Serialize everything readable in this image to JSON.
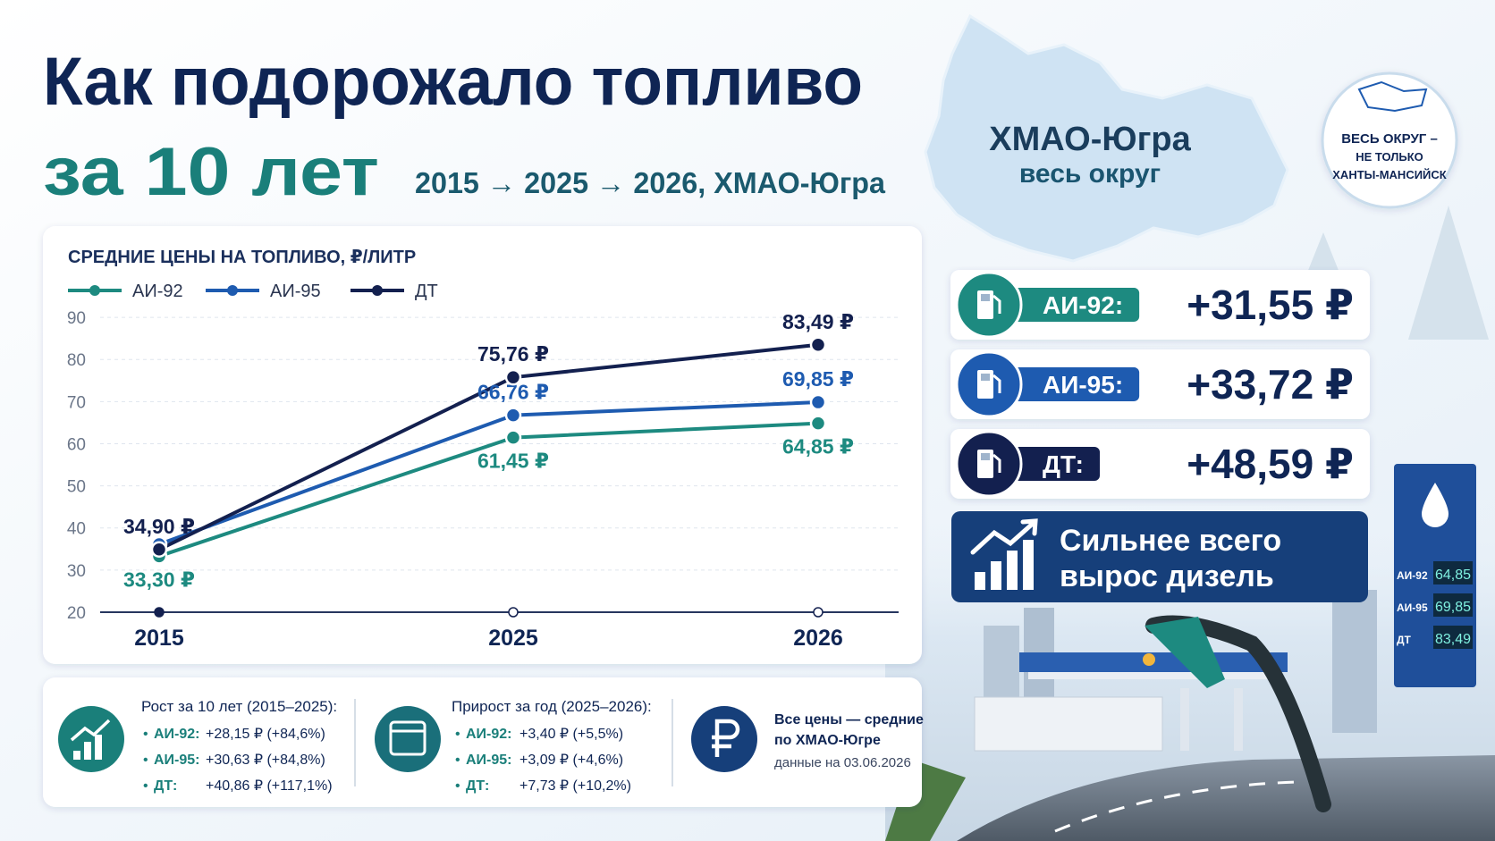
{
  "header": {
    "title_line1": "Как подорожало топливо",
    "title_line2": "за 10 лет",
    "subtitle": "2015 → 2025 → 2026, ХМАО-Югра"
  },
  "region": {
    "name": "ХМАО-Югра",
    "scope": "весь округ"
  },
  "badge": {
    "lines": [
      "ВЕСЬ ОКРУГ –",
      "НЕ ТОЛЬКО",
      "ХАНТЫ-МАНСИЙСК"
    ]
  },
  "chart_data": {
    "type": "line",
    "title": "СРЕДНИЕ ЦЕНЫ НА ТОПЛИВО, ₽/ЛИТР",
    "categories": [
      "2015",
      "2025",
      "2026"
    ],
    "series": [
      {
        "name": "АИ-92",
        "color": "#1d8a80",
        "values": [
          33.3,
          61.45,
          64.85
        ],
        "value_labels": [
          "33,30 ₽",
          "61,45 ₽",
          "64,85 ₽"
        ]
      },
      {
        "name": "АИ-95",
        "color": "#1e5bb0",
        "values": [
          36.13,
          66.76,
          69.85
        ],
        "value_labels": [
          null,
          "66,76 ₽",
          "69,85 ₽"
        ]
      },
      {
        "name": "ДТ",
        "color": "#13204f",
        "values": [
          34.9,
          75.76,
          83.49
        ],
        "value_labels": [
          "34,90 ₽",
          "75,76 ₽",
          "83,49 ₽"
        ]
      }
    ],
    "ylim": [
      20,
      95
    ],
    "yticks": [
      20,
      30,
      40,
      50,
      60,
      70,
      80,
      90
    ],
    "grid": true
  },
  "increases": [
    {
      "label": "АИ-92:",
      "value": "+31,55 ₽",
      "color": "#1d8a80"
    },
    {
      "label": "АИ-95:",
      "value": "+33,72 ₽",
      "color": "#1e5bb0"
    },
    {
      "label": "ДТ:",
      "value": "+48,59 ₽",
      "color": "#13204f"
    }
  ],
  "highlight": {
    "lines": [
      "Сильнее всего",
      "вырос дизель"
    ]
  },
  "footer": {
    "growth_10y": {
      "title": "Рост за 10 лет (2015–2025):",
      "items": [
        {
          "fuel": "АИ-92:",
          "value": "+28,15 ₽ (+84,6%)"
        },
        {
          "fuel": "АИ-95:",
          "value": "+30,63 ₽ (+84,8%)"
        },
        {
          "fuel": "ДТ:",
          "value": "+40,86 ₽ (+117,1%)"
        }
      ]
    },
    "growth_1y": {
      "title": "Прирост за год (2025–2026):",
      "items": [
        {
          "fuel": "АИ-92:",
          "value": "+3,40 ₽ (+5,5%)"
        },
        {
          "fuel": "АИ-95:",
          "value": "+3,09 ₽ (+4,6%)"
        },
        {
          "fuel": "ДТ:",
          "value": "+7,73 ₽ (+10,2%)"
        }
      ]
    },
    "note": {
      "lines": [
        "Все цены — средние",
        "по ХМАО-Югре"
      ],
      "date": "данные на 03.06.2026"
    }
  },
  "pump_display": [
    {
      "fuel": "АИ-92",
      "price": "64,85"
    },
    {
      "fuel": "АИ-95",
      "price": "69,85"
    },
    {
      "fuel": "ДТ",
      "price": "83,49"
    }
  ]
}
